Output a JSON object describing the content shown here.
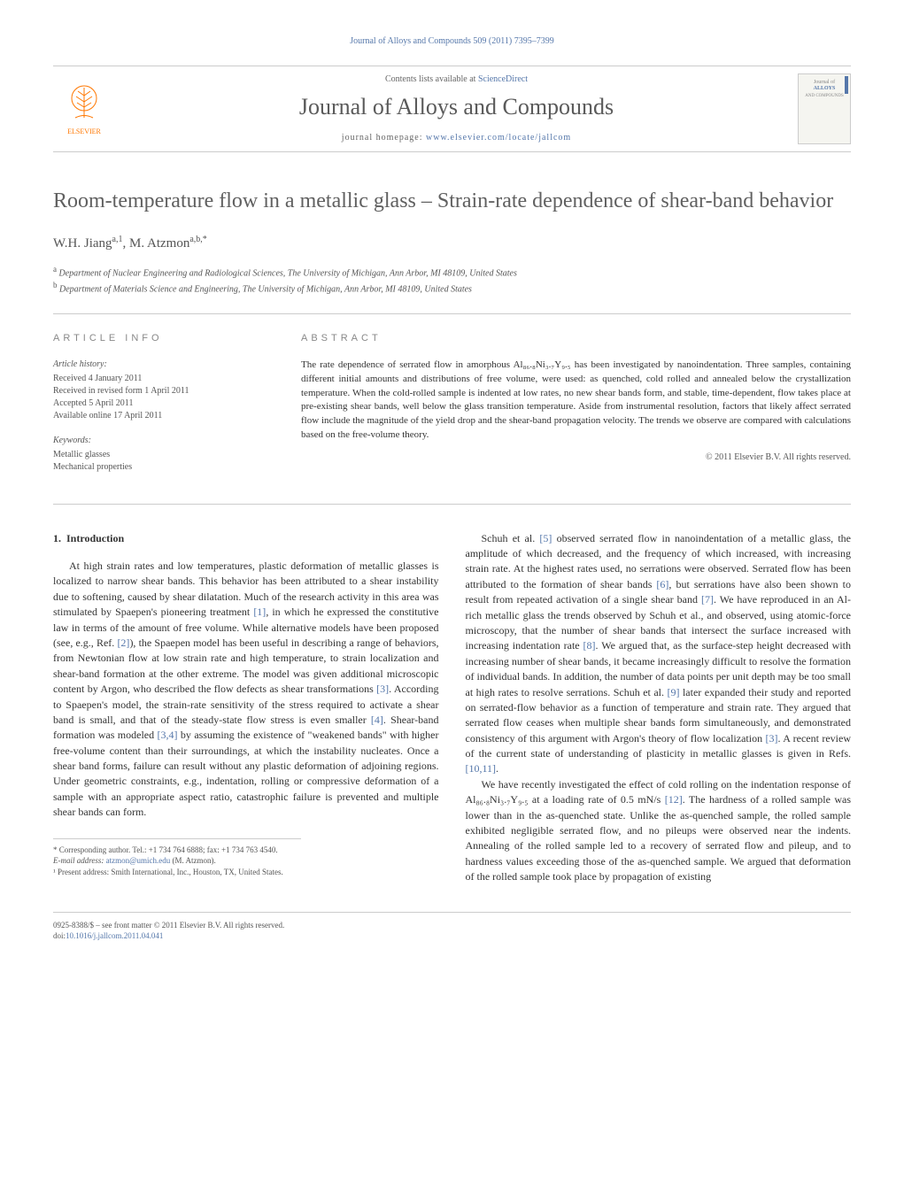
{
  "header": {
    "citation": "Journal of Alloys and Compounds 509 (2011) 7395–7399",
    "contents_prefix": "Contents lists available at ",
    "contents_link": "ScienceDirect",
    "journal_title": "Journal of Alloys and Compounds",
    "homepage_prefix": "journal homepage: ",
    "homepage_link": "www.elsevier.com/locate/jallcom",
    "publisher": "ELSEVIER",
    "cover_text": "Journal of\nALLOYS\nAND COMPOUNDS"
  },
  "article": {
    "title": "Room-temperature flow in a metallic glass – Strain-rate dependence of shear-band behavior",
    "authors_html": "W.H. Jiang<sup>a,1</sup>, M. Atzmon<sup>a,b,*</sup>",
    "affiliations": [
      {
        "sup": "a",
        "text": "Department of Nuclear Engineering and Radiological Sciences, The University of Michigan, Ann Arbor, MI 48109, United States"
      },
      {
        "sup": "b",
        "text": "Department of Materials Science and Engineering, The University of Michigan, Ann Arbor, MI 48109, United States"
      }
    ]
  },
  "info": {
    "heading": "ARTICLE INFO",
    "history_label": "Article history:",
    "history": [
      "Received 4 January 2011",
      "Received in revised form 1 April 2011",
      "Accepted 5 April 2011",
      "Available online 17 April 2011"
    ],
    "keywords_label": "Keywords:",
    "keywords": [
      "Metallic glasses",
      "Mechanical properties"
    ]
  },
  "abstract": {
    "heading": "ABSTRACT",
    "text": "The rate dependence of serrated flow in amorphous Al₈₆.₈Ni₃.₇Y₉.₅ has been investigated by nanoindentation. Three samples, containing different initial amounts and distributions of free volume, were used: as quenched, cold rolled and annealed below the crystallization temperature. When the cold-rolled sample is indented at low rates, no new shear bands form, and stable, time-dependent, flow takes place at pre-existing shear bands, well below the glass transition temperature. Aside from instrumental resolution, factors that likely affect serrated flow include the magnitude of the yield drop and the shear-band propagation velocity. The trends we observe are compared with calculations based on the free-volume theory.",
    "copyright": "© 2011 Elsevier B.V. All rights reserved."
  },
  "body": {
    "section_number": "1.",
    "section_title": "Introduction",
    "col1": [
      "At high strain rates and low temperatures, plastic deformation of metallic glasses is localized to narrow shear bands. This behavior has been attributed to a shear instability due to softening, caused by shear dilatation. Much of the research activity in this area was stimulated by Spaepen's pioneering treatment [1], in which he expressed the constitutive law in terms of the amount of free volume. While alternative models have been proposed (see, e.g., Ref. [2]), the Spaepen model has been useful in describing a range of behaviors, from Newtonian flow at low strain rate and high temperature, to strain localization and shear-band formation at the other extreme. The model was given additional microscopic content by Argon, who described the flow defects as shear transformations [3]. According to Spaepen's model, the strain-rate sensitivity of the stress required to activate a shear band is small, and that of the steady-state flow stress is even smaller [4]. Shear-band formation was modeled [3,4] by assuming the existence of \"weakened bands\" with higher free-volume content than their surroundings, at which the instability nucleates. Once a shear band forms, failure can result without any plastic deformation of adjoining regions. Under geometric constraints, e.g., indentation, rolling or compressive deformation of a sample with an appropriate aspect ratio, catastrophic failure is prevented and multiple shear bands can form."
    ],
    "col2": [
      "Schuh et al. [5] observed serrated flow in nanoindentation of a metallic glass, the amplitude of which decreased, and the frequency of which increased, with increasing strain rate. At the highest rates used, no serrations were observed. Serrated flow has been attributed to the formation of shear bands [6], but serrations have also been shown to result from repeated activation of a single shear band [7]. We have reproduced in an Al-rich metallic glass the trends observed by Schuh et al., and observed, using atomic-force microscopy, that the number of shear bands that intersect the surface increased with increasing indentation rate [8]. We argued that, as the surface-step height decreased with increasing number of shear bands, it became increasingly difficult to resolve the formation of individual bands. In addition, the number of data points per unit depth may be too small at high rates to resolve serrations. Schuh et al. [9] later expanded their study and reported on serrated-flow behavior as a function of temperature and strain rate. They argued that serrated flow ceases when multiple shear bands form simultaneously, and demonstrated consistency of this argument with Argon's theory of flow localization [3]. A recent review of the current state of understanding of plasticity in metallic glasses is given in Refs. [10,11].",
      "We have recently investigated the effect of cold rolling on the indentation response of Al₈₆.₈Ni₃.₇Y₉.₅ at a loading rate of 0.5 mN/s [12]. The hardness of a rolled sample was lower than in the as-quenched state. Unlike the as-quenched sample, the rolled sample exhibited negligible serrated flow, and no pileups were observed near the indents. Annealing of the rolled sample led to a recovery of serrated flow and pileup, and to hardness values exceeding those of the as-quenched sample. We argued that deformation of the rolled sample took place by propagation of existing"
    ]
  },
  "footnotes": {
    "corr_label": "* Corresponding author. Tel.: +1 734 764 6888; fax: +1 734 763 4540.",
    "email_label": "E-mail address:",
    "email": "atzmon@umich.edu",
    "email_who": "(M. Atzmon).",
    "present_addr": "¹ Present address: Smith International, Inc., Houston, TX, United States."
  },
  "footer": {
    "issn_line": "0925-8388/$ – see front matter © 2011 Elsevier B.V. All rights reserved.",
    "doi_label": "doi:",
    "doi": "10.1016/j.jallcom.2011.04.041"
  },
  "colors": {
    "link": "#5577aa",
    "heading_gray": "#606060",
    "text": "#333333",
    "muted": "#555555",
    "rule": "#cccccc",
    "elsevier": "#ff7700"
  }
}
